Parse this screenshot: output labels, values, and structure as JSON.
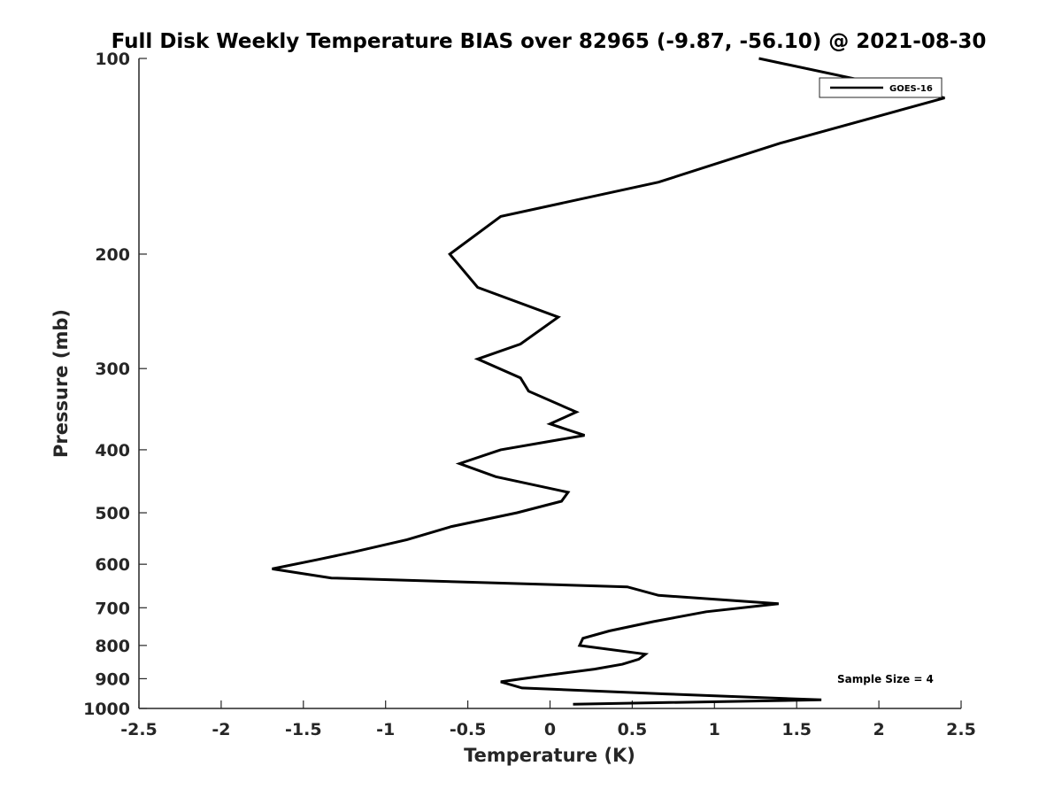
{
  "chart_data": {
    "type": "line",
    "title": "Full Disk Weekly Temperature BIAS over 82965 (-9.87, -56.10) @ 2021-08-30",
    "xlabel": "Temperature (K)",
    "ylabel": "Pressure (mb)",
    "xlim": [
      -2.5,
      2.5
    ],
    "ylim": [
      100,
      1000
    ],
    "y_scale": "log",
    "y_reversed": true,
    "x_ticks": [
      "-2.5",
      "-2",
      "-1.5",
      "-1",
      "-0.5",
      "0",
      "0.5",
      "1",
      "1.5",
      "2",
      "2.5"
    ],
    "x_tick_values": [
      -2.5,
      -2,
      -1.5,
      -1,
      -0.5,
      0,
      0.5,
      1,
      1.5,
      2,
      2.5
    ],
    "y_ticks": [
      "100",
      "200",
      "300",
      "400",
      "500",
      "600",
      "700",
      "800",
      "900",
      "1000"
    ],
    "y_tick_values": [
      100,
      200,
      300,
      400,
      500,
      600,
      700,
      800,
      900,
      1000
    ],
    "grid": false,
    "legend": {
      "position": "top-right",
      "entries": [
        "GOES-16"
      ]
    },
    "annotation": "Sample Size = 4",
    "series": [
      {
        "name": "GOES-16",
        "color": "#000000",
        "points": [
          [
            1.27,
            100
          ],
          [
            2.4,
            115
          ],
          [
            1.4,
            135
          ],
          [
            0.66,
            155
          ],
          [
            -0.3,
            175
          ],
          [
            -0.61,
            200
          ],
          [
            -0.44,
            225
          ],
          [
            0.05,
            250
          ],
          [
            -0.18,
            275
          ],
          [
            -0.44,
            290
          ],
          [
            -0.18,
            310
          ],
          [
            -0.13,
            325
          ],
          [
            0.16,
            350
          ],
          [
            0.0,
            365
          ],
          [
            0.21,
            380
          ],
          [
            -0.3,
            400
          ],
          [
            -0.55,
            420
          ],
          [
            -0.33,
            440
          ],
          [
            0.11,
            465
          ],
          [
            0.07,
            480
          ],
          [
            -0.2,
            500
          ],
          [
            -0.6,
            525
          ],
          [
            -0.87,
            550
          ],
          [
            -1.2,
            575
          ],
          [
            -1.41,
            590
          ],
          [
            -1.69,
            610
          ],
          [
            -1.33,
            630
          ],
          [
            0.47,
            650
          ],
          [
            0.66,
            670
          ],
          [
            1.39,
            690
          ],
          [
            0.95,
            710
          ],
          [
            0.63,
            735
          ],
          [
            0.36,
            760
          ],
          [
            0.2,
            780
          ],
          [
            0.18,
            800
          ],
          [
            0.58,
            825
          ],
          [
            0.54,
            840
          ],
          [
            0.44,
            855
          ],
          [
            0.27,
            870
          ],
          [
            -0.03,
            890
          ],
          [
            -0.3,
            910
          ],
          [
            -0.17,
            930
          ],
          [
            0.7,
            950
          ],
          [
            1.65,
            970
          ],
          [
            0.14,
            985
          ]
        ]
      }
    ]
  }
}
